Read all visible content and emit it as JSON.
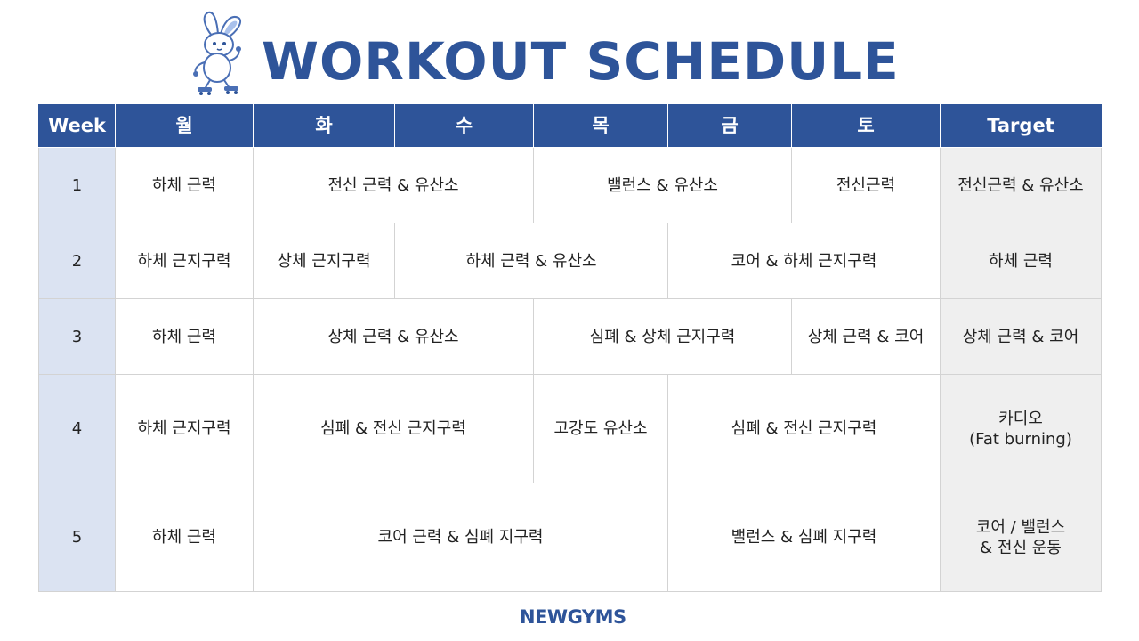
{
  "title": "WORKOUT SCHEDULE",
  "brand": "NEWGYMS",
  "colors": {
    "accent": "#2e5499",
    "week_column": "#dbe3f2",
    "target_column": "#efefef"
  },
  "mascot": "rabbit-on-roller-skates",
  "headers": {
    "week": "Week",
    "mon": "월",
    "tue": "화",
    "wed": "수",
    "thu": "목",
    "fri": "금",
    "sat": "토",
    "target": "Target"
  },
  "rows": [
    {
      "week": "1",
      "cells": [
        "하체 근력",
        "전신 근력 & 유산소",
        "밸런스 & 유산소",
        "전신근력"
      ],
      "target": "전신근력 & 유산소"
    },
    {
      "week": "2",
      "cells": [
        "하체 근지구력",
        "상체 근지구력",
        "하체 근력 & 유산소",
        "코어 & 하체 근지구력"
      ],
      "target": "하체 근력"
    },
    {
      "week": "3",
      "cells": [
        "하체 근력",
        "상체 근력 & 유산소",
        "심폐 & 상체 근지구력",
        "상체 근력 & 코어"
      ],
      "target": "상체 근력 & 코어"
    },
    {
      "week": "4",
      "cells": [
        "하체 근지구력",
        "심폐 & 전신 근지구력",
        "고강도 유산소",
        "심폐 & 전신 근지구력"
      ],
      "target_line1": "카디오",
      "target_line2": "(Fat burning)"
    },
    {
      "week": "5",
      "cells": [
        "하체 근력",
        "코어 근력 & 심폐 지구력",
        "밸런스 & 심폐 지구력"
      ],
      "target_line1": "코어 / 밸런스",
      "target_line2": "& 전신 운동"
    }
  ]
}
